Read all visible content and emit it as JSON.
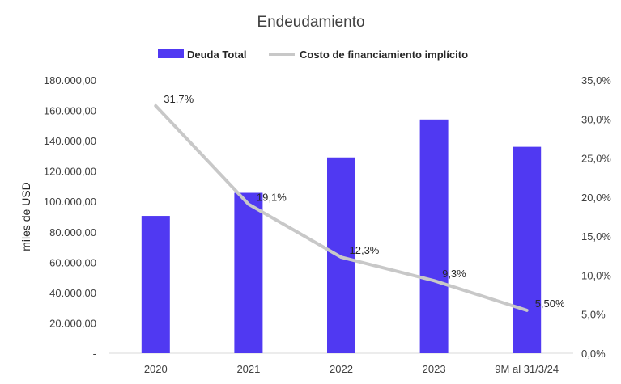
{
  "chart_data": {
    "type": "bar",
    "title": "Endeudamiento",
    "categories": [
      "2020",
      "2021",
      "2022",
      "2023",
      "9M al 31/3/24"
    ],
    "series": [
      {
        "name": "Deuda Total",
        "kind": "bar",
        "axis": "left",
        "color": "#5039F2",
        "values": [
          90500,
          105700,
          129000,
          154000,
          136000
        ]
      },
      {
        "name": "Costo de financiamiento implícito",
        "kind": "line",
        "axis": "right",
        "color": "#C8C8C8",
        "values": [
          31.7,
          19.1,
          12.3,
          9.3,
          5.5
        ],
        "labels": [
          "31,7%",
          "19,1%",
          "12,3%",
          "9,3%",
          "5,50%"
        ]
      }
    ],
    "ylabel": "miles de USD",
    "ylim": [
      0,
      180000
    ],
    "y2lim": [
      0,
      35
    ],
    "yticks": [
      "-",
      "20.000,00",
      "40.000,00",
      "60.000,00",
      "80.000,00",
      "100.000,00",
      "120.000,00",
      "140.000,00",
      "160.000,00",
      "180.000,00"
    ],
    "y2ticks": [
      "0,0%",
      "5,0%",
      "10,0%",
      "15,0%",
      "20,0%",
      "25,0%",
      "30,0%",
      "35,0%"
    ],
    "grid": false,
    "legend_position": "top-center"
  }
}
